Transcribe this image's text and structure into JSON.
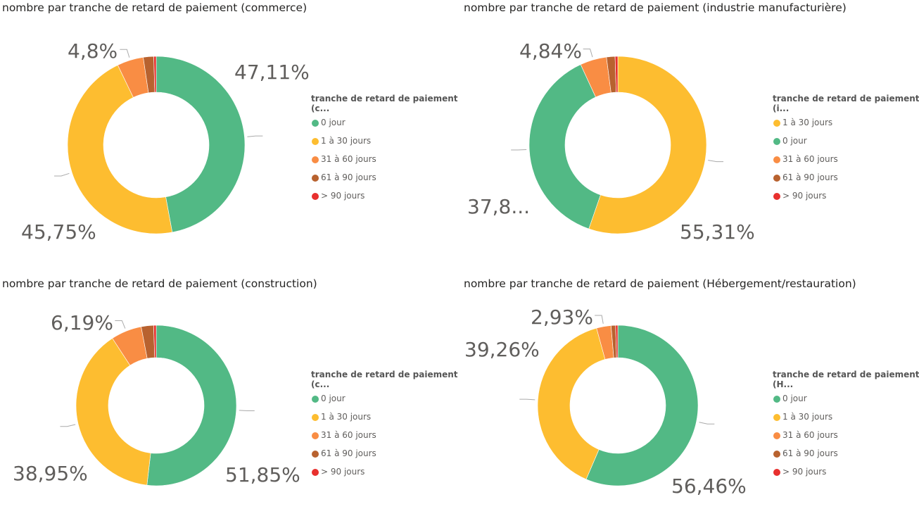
{
  "colors": {
    "0 jour": "#52B985",
    "1 à 30 jours": "#FDBD30",
    "31 à 60 jours": "#F98D44",
    "61 à 90 jours": "#B8622F",
    "> 90 jours": "#E8302E"
  },
  "chart_data": [
    {
      "type": "pie",
      "title": "nombre par tranche de retard de paiement (commerce)",
      "legend_title": "tranche de retard de paiement (c...",
      "legend_position": "right",
      "categories": [
        "0 jour",
        "1 à 30 jours",
        "31 à 60 jours",
        "61 à 90 jours",
        "> 90 jours"
      ],
      "values": [
        47.11,
        45.75,
        4.8,
        1.9,
        0.44
      ],
      "labels": [
        "47,11%",
        "45,75%",
        "4,8%"
      ]
    },
    {
      "type": "pie",
      "title": "nombre par tranche de retard de paiement (industrie manufacturière)",
      "legend_title": "tranche de retard de paiement (i...",
      "legend_position": "right",
      "categories": [
        "1 à 30 jours",
        "0 jour",
        "31 à 60 jours",
        "61 à 90 jours",
        "> 90 jours"
      ],
      "values": [
        55.31,
        37.8,
        4.84,
        1.55,
        0.5
      ],
      "labels": [
        "55,31%",
        "37,8...",
        "4,84%"
      ]
    },
    {
      "type": "pie",
      "title": "nombre par tranche de retard de paiement (construction)",
      "legend_title": "tranche de retard de paiement (c...",
      "legend_position": "right",
      "categories": [
        "0 jour",
        "1 à 30 jours",
        "31 à 60 jours",
        "61 à 90 jours",
        "> 90 jours"
      ],
      "values": [
        51.85,
        38.95,
        6.19,
        2.5,
        0.51
      ],
      "labels": [
        "51,85%",
        "38,95%",
        "6,19%"
      ]
    },
    {
      "type": "pie",
      "title": "nombre par tranche de retard de paiement (Hébergement/restauration)",
      "legend_title": "tranche de retard de paiement (H...",
      "legend_position": "right",
      "categories": [
        "0 jour",
        "1 à 30 jours",
        "31 à 60 jours",
        "61 à 90 jours",
        "> 90 jours"
      ],
      "values": [
        56.46,
        39.26,
        2.93,
        0.9,
        0.45
      ],
      "labels": [
        "56,46%",
        "39,26%",
        "2,93%"
      ]
    }
  ]
}
